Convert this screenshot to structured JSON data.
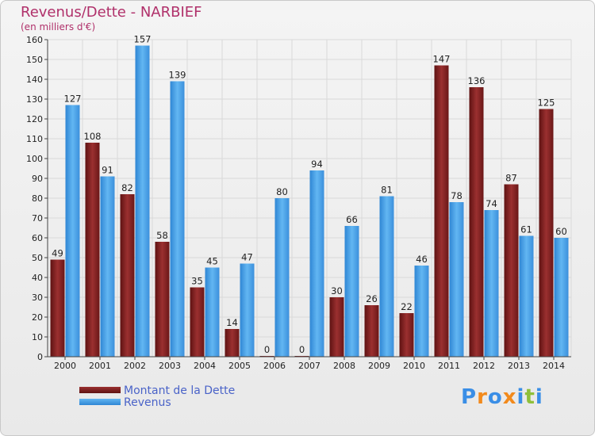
{
  "title": "Revenus/Dette - NARBIEF",
  "subtitle": "(en milliers d'€)",
  "logo": {
    "text": "Proxiti",
    "colors": [
      "#3a8ee6",
      "#f28a1c",
      "#3a8ee6",
      "#f28a1c",
      "#3a8ee6",
      "#8fbf3a",
      "#3a8ee6"
    ]
  },
  "legend": [
    {
      "label": "Montant de la Dette",
      "color": "#7b1f1f"
    },
    {
      "label": "Revenus",
      "color": "#4aa3e8"
    }
  ],
  "chart_data": {
    "type": "bar",
    "categories": [
      "2000",
      "2001",
      "2002",
      "2003",
      "2004",
      "2005",
      "2006",
      "2007",
      "2008",
      "2009",
      "2010",
      "2011",
      "2012",
      "2013",
      "2014"
    ],
    "series": [
      {
        "name": "Montant de la Dette",
        "color": "#7b1f1f",
        "values": [
          49,
          108,
          82,
          58,
          35,
          14,
          0,
          0,
          30,
          26,
          22,
          147,
          136,
          87,
          125
        ]
      },
      {
        "name": "Revenus",
        "color": "#4aa3e8",
        "values": [
          127,
          91,
          157,
          139,
          45,
          47,
          80,
          94,
          66,
          81,
          46,
          78,
          74,
          61,
          60
        ]
      }
    ],
    "title": "Revenus/Dette - NARBIEF",
    "ylabel": "(en milliers d'€)",
    "ylim": [
      0,
      160
    ],
    "yticks": [
      0,
      10,
      20,
      30,
      40,
      50,
      60,
      70,
      80,
      90,
      100,
      110,
      120,
      130,
      140,
      150,
      160
    ],
    "grid": true,
    "legend_position": "bottom-left"
  }
}
